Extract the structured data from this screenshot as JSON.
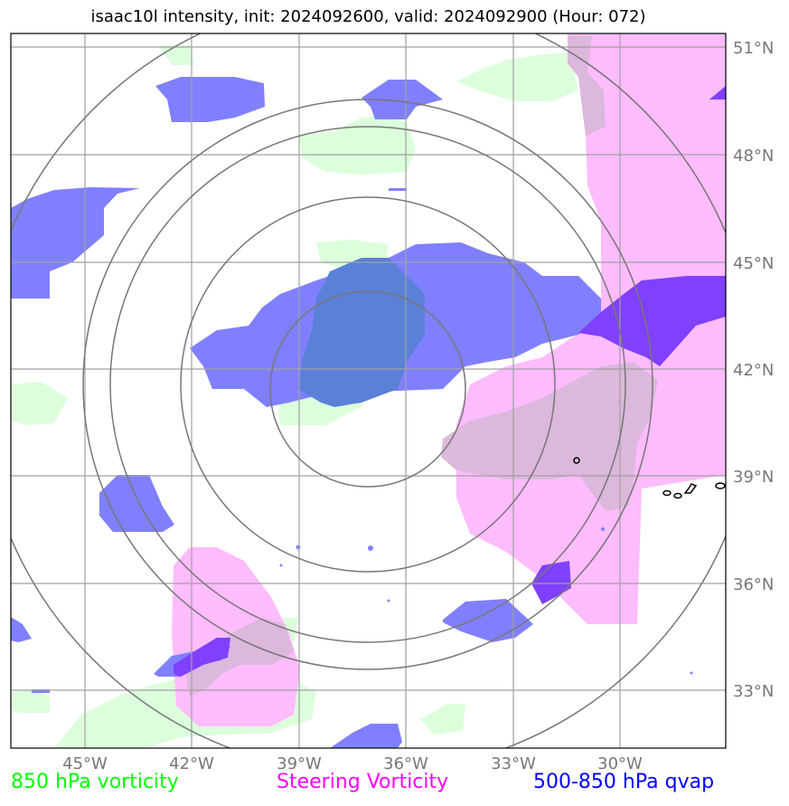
{
  "title": "isaac10l intensity, init: 2024092600, valid: 2024092900 (Hour: 072)",
  "lat_labels": [
    "51°N",
    "48°N",
    "45°N",
    "42°N",
    "39°N",
    "36°N",
    "33°N"
  ],
  "lon_labels": [
    "45°W",
    "42°W",
    "39°W",
    "36°W",
    "33°W",
    "30°W"
  ],
  "legend": [
    {
      "label": "850 hPa vorticity",
      "color": "#00ff00"
    },
    {
      "label": "Steering Vorticity",
      "color": "#ff00ff"
    },
    {
      "label": "500-850 hPa qvap",
      "color": "#0000ff"
    }
  ],
  "colors": {
    "vort850_fill": "#dcffdc",
    "steering_fill": "#ffbcff",
    "qvap_fill": "#8080ff",
    "qvap_overlap_fill": "#5a80d8",
    "steering_qvap_overlap": "#8040ff",
    "grid": "#999999",
    "range_rings": "#777777"
  }
}
